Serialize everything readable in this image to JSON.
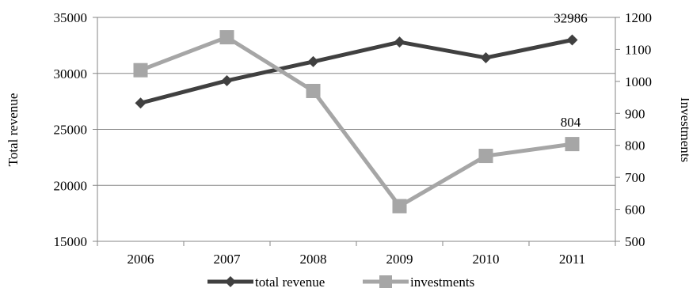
{
  "chart_data": {
    "type": "line",
    "categories": [
      "2006",
      "2007",
      "2008",
      "2009",
      "2010",
      "2011"
    ],
    "series": [
      {
        "name": "total revenue",
        "axis": "left",
        "color": "#404040",
        "marker": "diamond",
        "values": [
          27350,
          29350,
          31050,
          32800,
          31400,
          32986
        ]
      },
      {
        "name": "investments",
        "axis": "right",
        "color": "#a6a6a6",
        "marker": "square",
        "values": [
          1035,
          1138,
          970,
          610,
          767,
          804
        ]
      }
    ],
    "y_left": {
      "label": "Total revenue",
      "ylim": [
        15000,
        35000
      ],
      "ticks": [
        "15000",
        "20000",
        "25000",
        "30000",
        "35000"
      ]
    },
    "y_right": {
      "label": "Investments",
      "ylim": [
        500,
        1200
      ],
      "ticks": [
        "500",
        "600",
        "700",
        "800",
        "900",
        "1000",
        "1100",
        "1200"
      ]
    },
    "data_labels": [
      {
        "series": 0,
        "index": 5,
        "text": "32986"
      },
      {
        "series": 1,
        "index": 5,
        "text": "804"
      }
    ],
    "grid": true,
    "legend": "bottom"
  }
}
